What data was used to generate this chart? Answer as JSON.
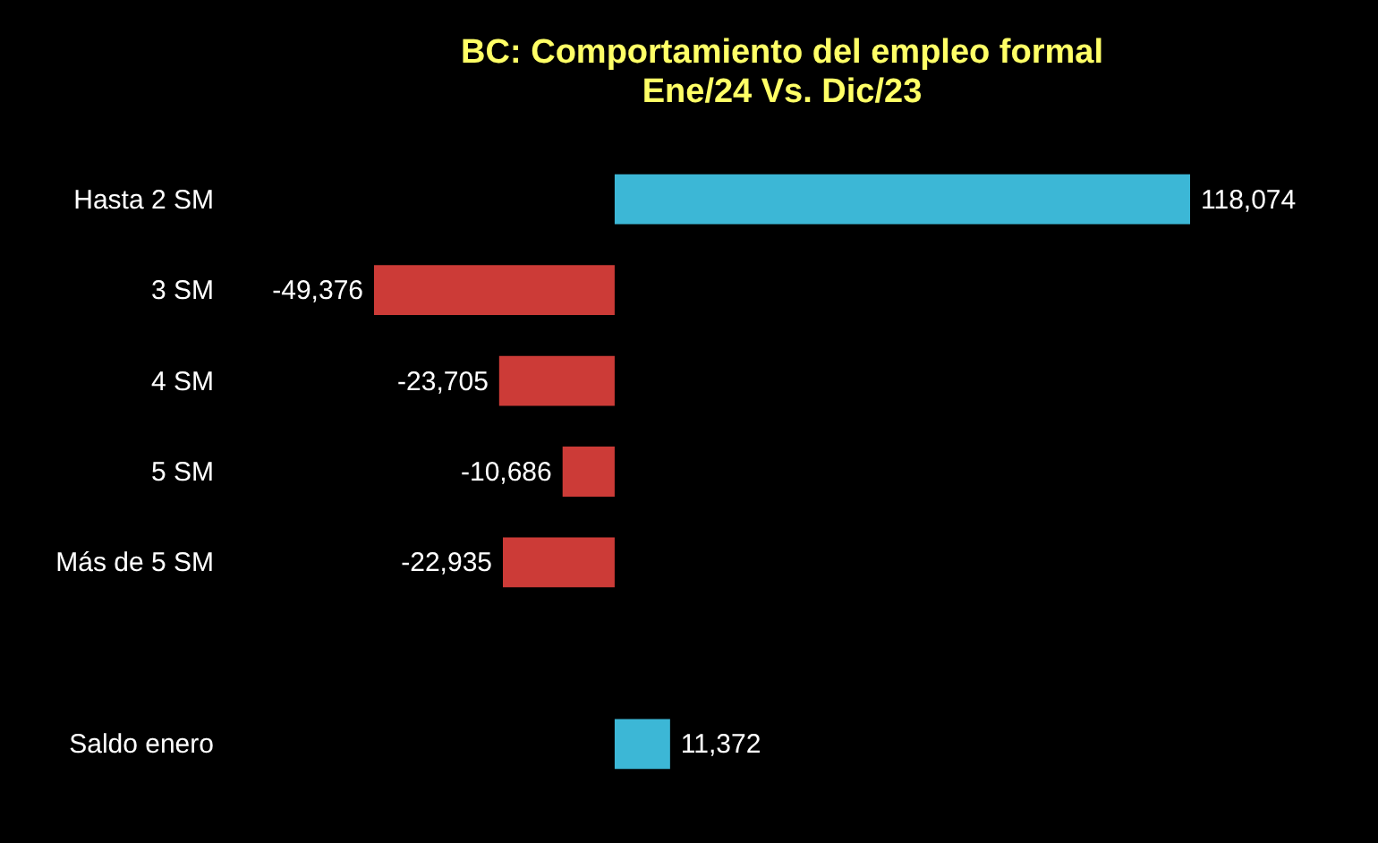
{
  "chart_data": {
    "type": "bar",
    "orientation": "horizontal",
    "title": "BC: Comportamiento del empleo formal",
    "subtitle": "Ene/24 Vs. Dic/23",
    "categories": [
      "Hasta 2 SM",
      "3 SM",
      "4 SM",
      "5 SM",
      "Más de 5 SM",
      null,
      "Saldo enero"
    ],
    "values": [
      118074,
      -49376,
      -23705,
      -10686,
      -22935,
      null,
      11372
    ],
    "value_labels": [
      "118,074",
      "-49,376",
      "-23,705",
      "-10,686",
      "-22,935",
      null,
      "11,372"
    ],
    "colors": [
      "#3cb7d6",
      "#cc3b37",
      "#cc3b37",
      "#cc3b37",
      "#cc3b37",
      "#cc3b37",
      "#3cb7d6"
    ]
  }
}
